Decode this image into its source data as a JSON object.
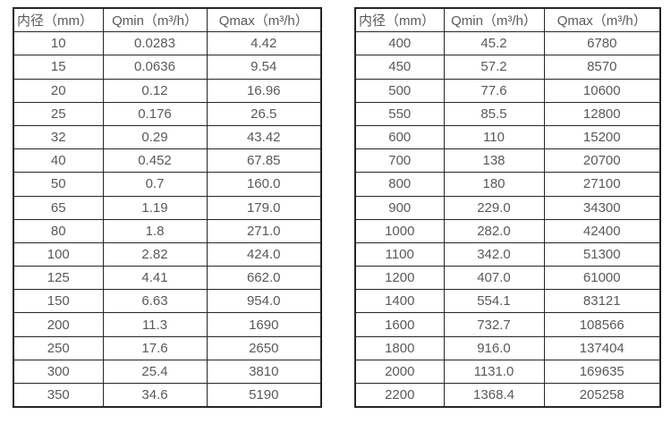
{
  "colors": {
    "border": "#262626",
    "text": "#595959",
    "background": "#ffffff"
  },
  "tables": [
    {
      "name": "flow-table-small-diameters",
      "headers": [
        "内径（mm）",
        "Qmin（m³/h）",
        "Qmax（m³/h）"
      ],
      "rows": [
        [
          "10",
          "0.0283",
          "4.42"
        ],
        [
          "15",
          "0.0636",
          "9.54"
        ],
        [
          "20",
          "0.12",
          "16.96"
        ],
        [
          "25",
          "0.176",
          "26.5"
        ],
        [
          "32",
          "0.29",
          "43.42"
        ],
        [
          "40",
          "0.452",
          "67.85"
        ],
        [
          "50",
          "0.7",
          "160.0"
        ],
        [
          "65",
          "1.19",
          "179.0"
        ],
        [
          "80",
          "1.8",
          "271.0"
        ],
        [
          "100",
          "2.82",
          "424.0"
        ],
        [
          "125",
          "4.41",
          "662.0"
        ],
        [
          "150",
          "6.63",
          "954.0"
        ],
        [
          "200",
          "11.3",
          "1690"
        ],
        [
          "250",
          "17.6",
          "2650"
        ],
        [
          "300",
          "25.4",
          "3810"
        ],
        [
          "350",
          "34.6",
          "5190"
        ]
      ]
    },
    {
      "name": "flow-table-large-diameters",
      "headers": [
        "内径（mm）",
        "Qmin（m³/h）",
        "Qmax（m³/h）"
      ],
      "rows": [
        [
          "400",
          "45.2",
          "6780"
        ],
        [
          "450",
          "57.2",
          "8570"
        ],
        [
          "500",
          "77.6",
          "10600"
        ],
        [
          "550",
          "85.5",
          "12800"
        ],
        [
          "600",
          "110",
          "15200"
        ],
        [
          "700",
          "138",
          "20700"
        ],
        [
          "800",
          "180",
          "27100"
        ],
        [
          "900",
          "229.0",
          "34300"
        ],
        [
          "1000",
          "282.0",
          "42400"
        ],
        [
          "1100",
          "342.0",
          "51300"
        ],
        [
          "1200",
          "407.0",
          "61000"
        ],
        [
          "1400",
          "554.1",
          "83121"
        ],
        [
          "1600",
          "732.7",
          "108566"
        ],
        [
          "1800",
          "916.0",
          "137404"
        ],
        [
          "2000",
          "1131.0",
          "169635"
        ],
        [
          "2200",
          "1368.4",
          "205258"
        ]
      ]
    }
  ]
}
